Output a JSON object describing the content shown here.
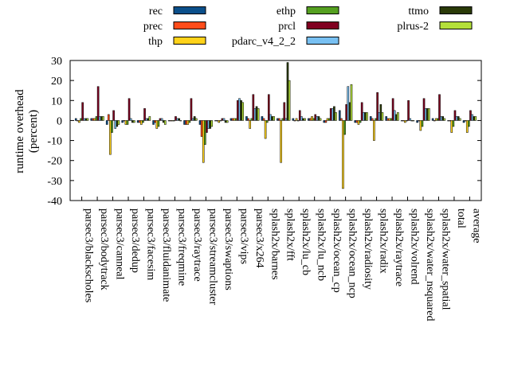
{
  "chart_data": {
    "type": "bar",
    "ylabel": "runtime overhead (percent)",
    "ylabel_lines": [
      "runtime overhead",
      "(percent)"
    ],
    "ylim": [
      -40,
      30
    ],
    "yticks": [
      30,
      20,
      10,
      0,
      -10,
      -20,
      -30,
      -40
    ],
    "grid": false,
    "legend_position": "top",
    "categories": [
      "parsec3/blackscholes",
      "parsec3/bodytrack",
      "parsec3/canneal",
      "parsec3/dedup",
      "parsec3/facesim",
      "parsec3/fluidanimate",
      "parsec3/freqmine",
      "parsec3/raytrace",
      "parsec3/streamcluster",
      "parsec3/swaptions",
      "parsec3/vips",
      "parsec3/x264",
      "splash2x/barnes",
      "splash2x/fft",
      "splash2x/lu_cb",
      "splash2x/lu_ncb",
      "splash2x/ocean_cp",
      "splash2x/ocean_ncp",
      "splash2x/radiosity",
      "splash2x/radix",
      "splash2x/raytrace",
      "splash2x/volrend",
      "splash2x/water_nsquared",
      "splash2x/water_spatial",
      "total",
      "average"
    ],
    "series": [
      {
        "name": "rec",
        "color": "#0b4f8a",
        "values": [
          1,
          1,
          -2,
          -1,
          -1,
          -2,
          0,
          -2,
          -2,
          0,
          1,
          2,
          2,
          1,
          1,
          1,
          -1,
          5,
          -1,
          2,
          2,
          0,
          -1,
          1,
          0,
          -1
        ]
      },
      {
        "name": "prec",
        "color": "#ff4c1a",
        "values": [
          0,
          1,
          3,
          0,
          -1,
          -1,
          0,
          -2,
          -8,
          0,
          1,
          1,
          1,
          1,
          0,
          1,
          -1,
          1,
          -1,
          1,
          1,
          0,
          0,
          0,
          0,
          0
        ]
      },
      {
        "name": "thp",
        "color": "#ffd21a",
        "values": [
          -1,
          1,
          -17,
          -2,
          -2,
          -4,
          0,
          -2,
          -21,
          -1,
          1,
          -4,
          -9,
          -21,
          1,
          2,
          1,
          -34,
          -2,
          -10,
          1,
          -1,
          -5,
          1,
          -6,
          -6
        ]
      },
      {
        "name": "ethp",
        "color": "#55a020",
        "values": [
          1,
          2,
          -6,
          -2,
          -1,
          -3,
          0,
          -1,
          -12,
          0,
          1,
          1,
          -1,
          1,
          0,
          1,
          1,
          -7,
          -1,
          1,
          1,
          0,
          -3,
          1,
          -3,
          -3
        ]
      },
      {
        "name": "prcl",
        "color": "#800020",
        "values": [
          9,
          17,
          5,
          11,
          6,
          1,
          2,
          11,
          -6,
          1,
          10,
          13,
          13,
          9,
          5,
          3,
          6,
          8,
          9,
          14,
          11,
          10,
          11,
          13,
          5,
          5
        ]
      },
      {
        "name": "pdarc_v4_2_2",
        "color": "#78c0f2",
        "values": [
          1,
          2,
          -4,
          1,
          1,
          1,
          1,
          1,
          -4,
          1,
          11,
          6,
          3,
          1,
          2,
          2,
          6,
          17,
          4,
          4,
          5,
          1,
          6,
          2,
          2,
          3
        ]
      },
      {
        "name": "ttmo",
        "color": "#2a3a08",
        "values": [
          1,
          2,
          -3,
          -1,
          1,
          -1,
          1,
          2,
          -4,
          -1,
          10,
          7,
          2,
          29,
          1,
          2,
          7,
          9,
          4,
          8,
          3,
          0,
          6,
          2,
          2,
          2
        ]
      },
      {
        "name": "plrus-2",
        "color": "#b4e03a",
        "values": [
          1,
          2,
          -2,
          -1,
          2,
          -2,
          0,
          1,
          -3,
          -1,
          9,
          6,
          2,
          20,
          1,
          1,
          4,
          18,
          4,
          4,
          4,
          0,
          6,
          1,
          1,
          2
        ]
      }
    ]
  }
}
